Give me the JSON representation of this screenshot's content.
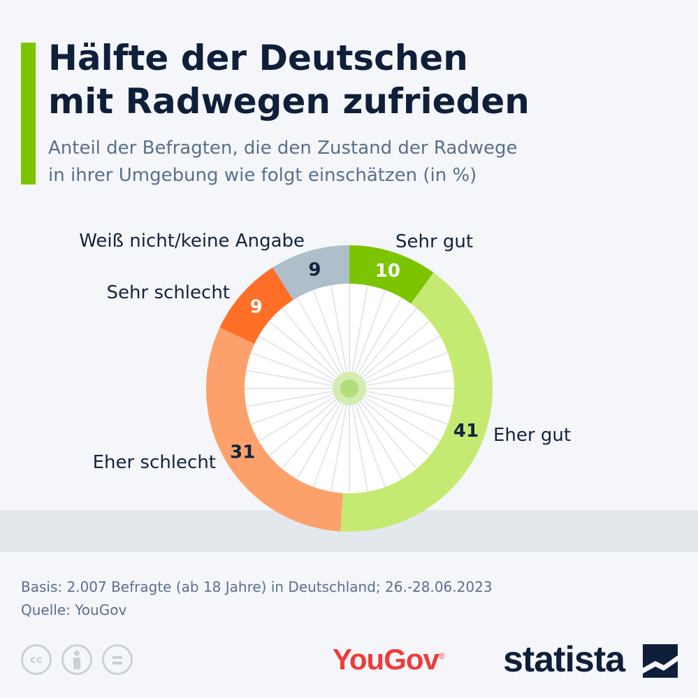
{
  "header": {
    "title_lines": [
      "Hälfte der Deutschen",
      "mit Radwegen zufrieden"
    ],
    "subtitle_lines": [
      "Anteil der Befragten, die den Zustand der Radwege",
      "in ihrer Umgebung wie folgt einschätzen (in %)"
    ]
  },
  "chart_data": {
    "type": "pie",
    "variant": "donut",
    "unit": "%",
    "slices": [
      {
        "label": "Sehr gut",
        "value": 10,
        "color": "#7cc400"
      },
      {
        "label": "Eher gut",
        "value": 41,
        "color": "#c5ea71"
      },
      {
        "label": "Eher schlecht",
        "value": 31,
        "color": "#fca16b"
      },
      {
        "label": "Sehr schlecht",
        "value": 9,
        "color": "#ff6f28"
      },
      {
        "label": "Weiß nicht/keine Angabe",
        "value": 9,
        "color": "#aebfca"
      }
    ]
  },
  "footer": {
    "basis": "Basis: 2.007 Befragte (ab 18 Jahre) in Deutschland; 26.-28.06.2023",
    "source": "Quelle: YouGov"
  },
  "logos": {
    "license_icons": [
      "cc-icon",
      "by-icon",
      "nd-icon"
    ],
    "license_cc_text": "cc",
    "yougov": "YouGov",
    "statista": "statista"
  }
}
